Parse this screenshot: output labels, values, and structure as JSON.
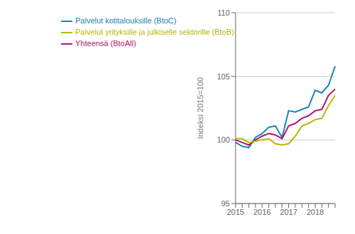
{
  "chart_data": {
    "type": "line",
    "ylabel": "Indeksi 2015=100",
    "categories": [
      "2015",
      null,
      null,
      null,
      "2016",
      null,
      null,
      null,
      "2017",
      null,
      null,
      null,
      "2018",
      null,
      null,
      null
    ],
    "series": [
      {
        "name": "Palvelut kotitalouksille (BtoC)",
        "color": "#1a85b8",
        "values": [
          99.8,
          99.5,
          99.4,
          100.2,
          100.5,
          101.0,
          101.1,
          100.2,
          102.3,
          102.2,
          102.4,
          102.6,
          103.9,
          103.7,
          104.3,
          105.8
        ]
      },
      {
        "name": "Yhteensä (BtoAll)",
        "color": "#b0166e",
        "values": [
          100.0,
          99.8,
          99.6,
          100.0,
          100.3,
          100.5,
          100.4,
          100.1,
          101.1,
          101.3,
          101.7,
          101.9,
          102.3,
          102.4,
          103.5,
          104.0
        ]
      },
      {
        "name": "Palvelut yrityksille ja julkiselle sektorille (BtoB)",
        "color": "#b8b800",
        "values": [
          100.1,
          100.1,
          99.8,
          99.9,
          100.0,
          100.1,
          99.7,
          99.6,
          99.7,
          100.3,
          101.1,
          101.3,
          101.6,
          101.7,
          102.7,
          103.5
        ]
      }
    ],
    "ylim": [
      95,
      110
    ],
    "yticks": [
      95,
      100,
      105,
      110
    ],
    "grid": true,
    "legend": "upper left"
  }
}
